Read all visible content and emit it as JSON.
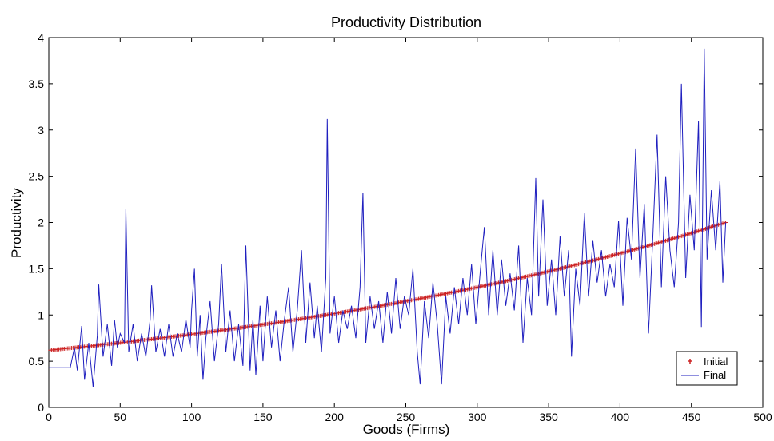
{
  "chart_data": {
    "type": "line",
    "title": "Productivity Distribution",
    "xlabel": "Goods (Firms)",
    "ylabel": "Productivity",
    "xlim": [
      0,
      500
    ],
    "ylim": [
      0,
      4
    ],
    "xticks": [
      0,
      50,
      100,
      150,
      200,
      250,
      300,
      350,
      400,
      450,
      500
    ],
    "yticks": [
      0,
      0.5,
      1,
      1.5,
      2,
      2.5,
      3,
      3.5,
      4
    ],
    "grid": false,
    "legend_position": "bottom-right",
    "series": [
      {
        "name": "Initial",
        "style": "markers",
        "marker": "+",
        "color": "#cc2222",
        "n_points": 474,
        "x_range": [
          1,
          474
        ],
        "y_start": 0.62,
        "y_end": 2.0,
        "growth": "exponential",
        "sampled_points": [
          [
            1,
            0.62
          ],
          [
            50,
            0.7
          ],
          [
            100,
            0.78
          ],
          [
            150,
            0.86
          ],
          [
            200,
            0.96
          ],
          [
            250,
            1.08
          ],
          [
            300,
            1.22
          ],
          [
            350,
            1.4
          ],
          [
            400,
            1.6
          ],
          [
            450,
            1.88
          ],
          [
            474,
            2.0
          ]
        ]
      },
      {
        "name": "Final",
        "style": "line",
        "color": "#1f1fbf",
        "points": [
          [
            0,
            0.43
          ],
          [
            15,
            0.43
          ],
          [
            18,
            0.65
          ],
          [
            20,
            0.4
          ],
          [
            23,
            0.88
          ],
          [
            25,
            0.3
          ],
          [
            28,
            0.7
          ],
          [
            31,
            0.22
          ],
          [
            34,
            0.78
          ],
          [
            35,
            1.33
          ],
          [
            38,
            0.55
          ],
          [
            41,
            0.9
          ],
          [
            44,
            0.45
          ],
          [
            46,
            0.95
          ],
          [
            48,
            0.65
          ],
          [
            50,
            0.8
          ],
          [
            53,
            0.7
          ],
          [
            54,
            2.15
          ],
          [
            56,
            0.6
          ],
          [
            59,
            0.9
          ],
          [
            62,
            0.5
          ],
          [
            65,
            0.8
          ],
          [
            68,
            0.55
          ],
          [
            71,
            0.95
          ],
          [
            72,
            1.32
          ],
          [
            75,
            0.6
          ],
          [
            78,
            0.85
          ],
          [
            81,
            0.55
          ],
          [
            84,
            0.9
          ],
          [
            87,
            0.55
          ],
          [
            90,
            0.8
          ],
          [
            93,
            0.6
          ],
          [
            96,
            0.95
          ],
          [
            99,
            0.65
          ],
          [
            100,
            1.05
          ],
          [
            102,
            1.5
          ],
          [
            104,
            0.55
          ],
          [
            106,
            1.0
          ],
          [
            108,
            0.3
          ],
          [
            110,
            0.75
          ],
          [
            113,
            1.15
          ],
          [
            116,
            0.5
          ],
          [
            119,
            0.9
          ],
          [
            121,
            1.55
          ],
          [
            124,
            0.6
          ],
          [
            127,
            1.05
          ],
          [
            130,
            0.5
          ],
          [
            133,
            0.9
          ],
          [
            136,
            0.45
          ],
          [
            138,
            1.75
          ],
          [
            141,
            0.4
          ],
          [
            143,
            0.95
          ],
          [
            145,
            0.35
          ],
          [
            148,
            1.1
          ],
          [
            150,
            0.5
          ],
          [
            153,
            1.2
          ],
          [
            156,
            0.65
          ],
          [
            159,
            1.05
          ],
          [
            162,
            0.5
          ],
          [
            165,
            0.95
          ],
          [
            168,
            1.3
          ],
          [
            171,
            0.6
          ],
          [
            174,
            1.05
          ],
          [
            177,
            1.7
          ],
          [
            180,
            0.7
          ],
          [
            183,
            1.35
          ],
          [
            186,
            0.75
          ],
          [
            188,
            1.1
          ],
          [
            191,
            0.6
          ],
          [
            194,
            1.4
          ],
          [
            195,
            3.12
          ],
          [
            197,
            0.8
          ],
          [
            200,
            1.2
          ],
          [
            203,
            0.7
          ],
          [
            206,
            1.05
          ],
          [
            209,
            0.85
          ],
          [
            212,
            1.1
          ],
          [
            215,
            0.75
          ],
          [
            218,
            1.3
          ],
          [
            220,
            2.32
          ],
          [
            222,
            0.7
          ],
          [
            225,
            1.2
          ],
          [
            228,
            0.85
          ],
          [
            231,
            1.15
          ],
          [
            234,
            0.7
          ],
          [
            237,
            1.25
          ],
          [
            240,
            0.8
          ],
          [
            243,
            1.4
          ],
          [
            246,
            0.85
          ],
          [
            249,
            1.2
          ],
          [
            252,
            1.0
          ],
          [
            255,
            1.5
          ],
          [
            258,
            0.6
          ],
          [
            260,
            0.25
          ],
          [
            263,
            1.15
          ],
          [
            266,
            0.75
          ],
          [
            269,
            1.35
          ],
          [
            272,
            0.9
          ],
          [
            275,
            0.25
          ],
          [
            278,
            1.2
          ],
          [
            281,
            0.8
          ],
          [
            284,
            1.3
          ],
          [
            287,
            0.9
          ],
          [
            290,
            1.4
          ],
          [
            293,
            1.0
          ],
          [
            296,
            1.55
          ],
          [
            299,
            0.9
          ],
          [
            302,
            1.45
          ],
          [
            305,
            1.95
          ],
          [
            308,
            1.0
          ],
          [
            311,
            1.7
          ],
          [
            314,
            1.0
          ],
          [
            317,
            1.6
          ],
          [
            320,
            1.1
          ],
          [
            323,
            1.45
          ],
          [
            326,
            1.05
          ],
          [
            329,
            1.75
          ],
          [
            332,
            0.7
          ],
          [
            335,
            1.4
          ],
          [
            338,
            1.0
          ],
          [
            341,
            2.48
          ],
          [
            343,
            1.2
          ],
          [
            346,
            2.25
          ],
          [
            349,
            1.1
          ],
          [
            352,
            1.6
          ],
          [
            355,
            1.0
          ],
          [
            358,
            1.85
          ],
          [
            361,
            1.2
          ],
          [
            364,
            1.7
          ],
          [
            366,
            0.55
          ],
          [
            369,
            1.5
          ],
          [
            372,
            1.1
          ],
          [
            375,
            2.1
          ],
          [
            378,
            1.2
          ],
          [
            381,
            1.8
          ],
          [
            384,
            1.35
          ],
          [
            387,
            1.7
          ],
          [
            390,
            1.2
          ],
          [
            393,
            1.55
          ],
          [
            396,
            1.3
          ],
          [
            399,
            2.02
          ],
          [
            402,
            1.1
          ],
          [
            405,
            2.05
          ],
          [
            408,
            1.6
          ],
          [
            411,
            2.8
          ],
          [
            414,
            1.4
          ],
          [
            417,
            2.2
          ],
          [
            420,
            0.8
          ],
          [
            423,
            1.85
          ],
          [
            426,
            2.95
          ],
          [
            429,
            1.3
          ],
          [
            432,
            2.5
          ],
          [
            435,
            1.7
          ],
          [
            438,
            1.3
          ],
          [
            441,
            2.0
          ],
          [
            443,
            3.5
          ],
          [
            446,
            1.4
          ],
          [
            449,
            2.3
          ],
          [
            452,
            1.7
          ],
          [
            455,
            3.1
          ],
          [
            457,
            0.87
          ],
          [
            459,
            3.88
          ],
          [
            461,
            1.6
          ],
          [
            464,
            2.35
          ],
          [
            467,
            1.7
          ],
          [
            470,
            2.45
          ],
          [
            472,
            1.35
          ],
          [
            474,
            2.0
          ]
        ]
      }
    ]
  }
}
